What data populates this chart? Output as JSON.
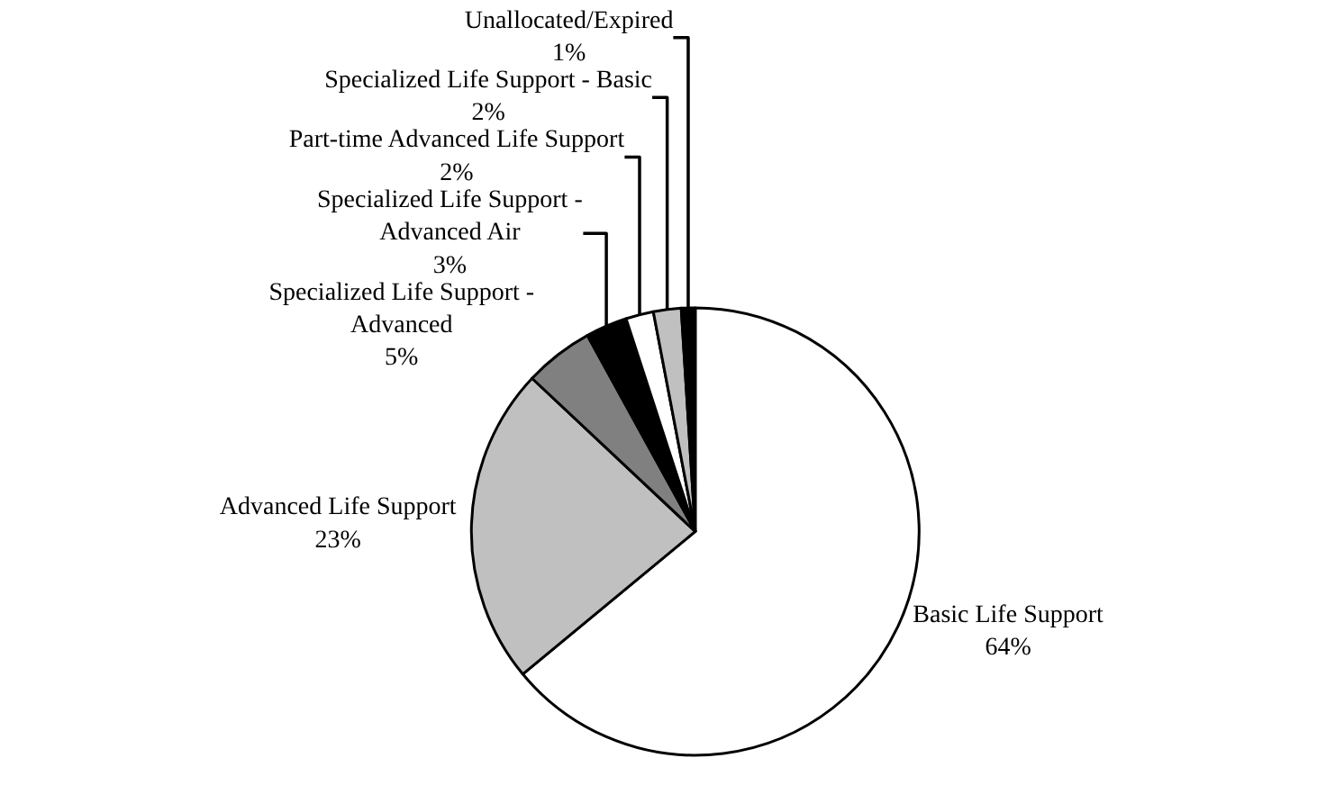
{
  "chart_data": {
    "type": "pie",
    "categories": [
      "Basic Life Support",
      "Advanced Life Support",
      "Specialized Life Support - Advanced",
      "Specialized Life Support - Advanced Air",
      "Part-time Advanced Life Support",
      "Specialized Life Support - Basic",
      "Unallocated/Expired"
    ],
    "values": [
      64,
      23,
      5,
      3,
      2,
      2,
      1
    ],
    "value_labels": [
      "64%",
      "23%",
      "5%",
      "3%",
      "2%",
      "2%",
      "1%"
    ],
    "colors": [
      "#ffffff",
      "#c0c0c0",
      "#808080",
      "#000000",
      "#ffffff",
      "#c0c0c0",
      "#000000"
    ],
    "legend": false
  }
}
